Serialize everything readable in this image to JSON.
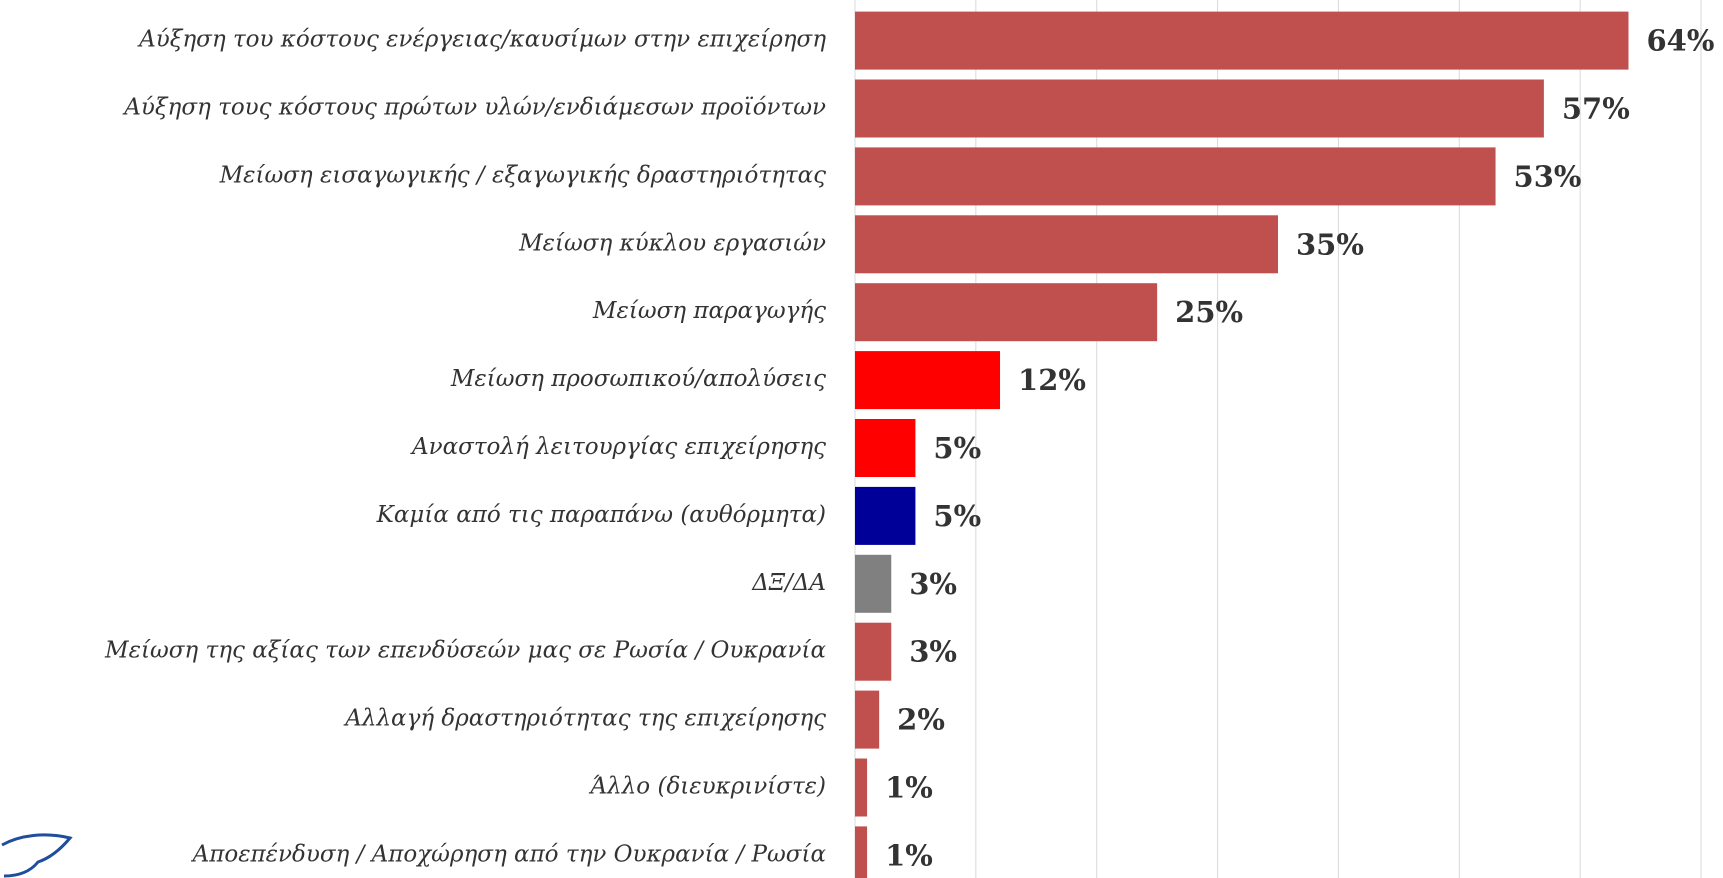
{
  "chart_data": {
    "type": "barh",
    "categories": [
      "Αύξηση του κόστους ενέργειας/καυσίμων στην επιχείρηση",
      "Αύξηση τους κόστους πρώτων υλών/ενδιάμεσων προϊόντων",
      "Μείωση εισαγωγικής / εξαγωγικής δραστηριότητας",
      "Μείωση κύκλου εργασιών",
      "Μείωση παραγωγής",
      "Μείωση προσωπικού/απολύσεις",
      "Αναστολή λειτουργίας επιχείρησης",
      "Καμία από τις παραπάνω (αυθόρμητα)",
      "ΔΞ/ΔΑ",
      "Μείωση της αξίας των επενδύσεών μας σε Ρωσία / Ουκρανία",
      "Αλλαγή δραστηριότητας της επιχείρησης",
      "Άλλο (διευκρινίστε)",
      "Αποεπένδυση / Αποχώρηση από την Ουκρανία / Ρωσία"
    ],
    "values": [
      64,
      57,
      53,
      35,
      25,
      12,
      5,
      5,
      3,
      3,
      2,
      1,
      1
    ],
    "value_labels": [
      "64%",
      "57%",
      "53%",
      "35%",
      "25%",
      "12%",
      "5%",
      "5%",
      "3%",
      "3%",
      "2%",
      "1%",
      "1%"
    ],
    "colors": [
      "#c0504d",
      "#c0504d",
      "#c0504d",
      "#c0504d",
      "#c0504d",
      "#ff0000",
      "#ff0000",
      "#000099",
      "#808080",
      "#c0504d",
      "#c0504d",
      "#c0504d",
      "#c0504d"
    ],
    "xlim": [
      0,
      70
    ],
    "xticks": [
      0,
      10,
      20,
      30,
      40,
      50,
      60,
      70
    ],
    "grid": true
  }
}
